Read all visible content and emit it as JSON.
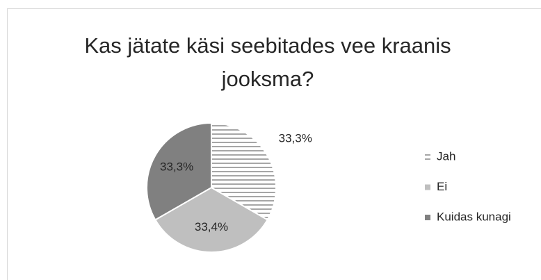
{
  "chart_data": {
    "type": "pie",
    "title": "Kas jätate käsi seebitades vee kraanis jooksma?",
    "categories": [
      "Jah",
      "Ei",
      "Kuidas kunagi"
    ],
    "values": [
      33.3,
      33.4,
      33.3
    ],
    "value_labels": [
      "33,3%",
      "33,4%",
      "33,3%"
    ],
    "colors": [
      "#7f7f7f",
      "#bfbfbf",
      "#808080"
    ],
    "hatch": [
      true,
      false,
      false
    ],
    "legend": "right"
  }
}
